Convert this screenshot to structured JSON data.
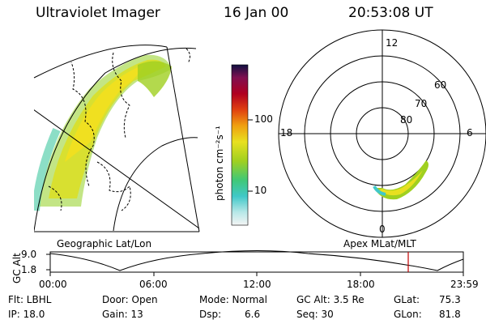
{
  "header": {
    "instrument": "Ultraviolet Imager",
    "date": "16 Jan 00",
    "time": "20:53:08 UT"
  },
  "colorbar": {
    "unit_label": "photon cm⁻²s⁻¹",
    "ticks": [
      "100",
      "10"
    ]
  },
  "left_panel": {
    "label": "Geographic Lat/Lon"
  },
  "polar_panel": {
    "label": "Apex MLat/MLT",
    "mlt_labels": [
      "12",
      "18",
      "6",
      "0"
    ],
    "lat_labels": [
      "60",
      "70",
      "80"
    ]
  },
  "orbit": {
    "ylabel": "GC Alt",
    "y_ticks": [
      "9.0",
      "1.8"
    ],
    "x_ticks": [
      "00:00",
      "06:00",
      "12:00",
      "18:00",
      "23:59"
    ]
  },
  "footer": {
    "filter": "Flt: LBHL",
    "ip": "IP: 18.0",
    "door": "Door: Open",
    "gain": "Gain: 13",
    "mode": "Mode: Normal",
    "dsp": "Dsp:",
    "dsp_value": "6.6",
    "gcalt": "GC Alt: 3.5 Re",
    "seq": "Seq: 30",
    "glat": "GLat:",
    "glat_value": "75.3",
    "glon": "GLon:",
    "glon_value": "81.8"
  },
  "colors": {
    "orbit_marker": "#c00000",
    "auroral_bright": "#f0e020",
    "auroral_mid": "#a0d020",
    "auroral_low": "#40c8a0"
  }
}
